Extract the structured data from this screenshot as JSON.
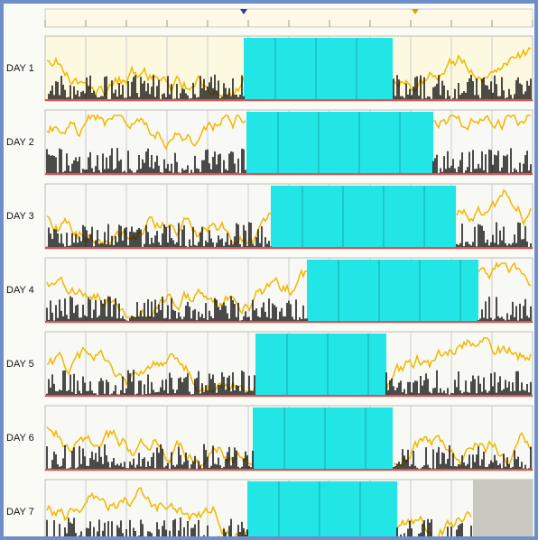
{
  "rows": [
    {
      "label": "DAY 1"
    },
    {
      "label": "DAY 2"
    },
    {
      "label": "DAY 3"
    },
    {
      "label": "DAY 4"
    },
    {
      "label": "DAY 5"
    },
    {
      "label": "DAY 6"
    },
    {
      "label": "DAY 7"
    }
  ]
}
